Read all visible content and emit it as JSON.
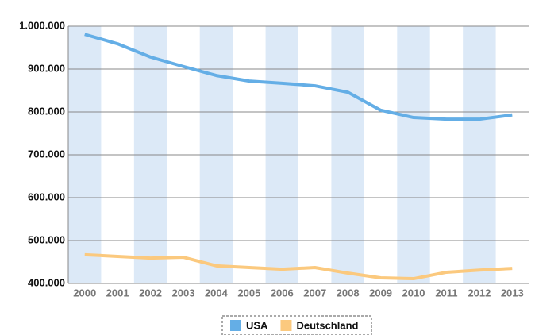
{
  "chart_data": {
    "type": "line",
    "categories": [
      "2000",
      "2001",
      "2002",
      "2003",
      "2004",
      "2005",
      "2006",
      "2007",
      "2008",
      "2009",
      "2010",
      "2011",
      "2012",
      "2013"
    ],
    "series": [
      {
        "name": "USA",
        "color": "#64aee6",
        "values": [
          981000,
          959000,
          928000,
          906000,
          885000,
          872000,
          867000,
          861000,
          846000,
          804000,
          787000,
          783000,
          783000,
          793000
        ]
      },
      {
        "name": "Deutschland",
        "color": "#fbc97e",
        "values": [
          467000,
          463000,
          459000,
          461000,
          441000,
          437000,
          433000,
          437000,
          424000,
          413000,
          411000,
          426000,
          431000,
          435000
        ]
      }
    ],
    "ylim": [
      400000,
      1000000
    ],
    "yticks": [
      {
        "value": 400000,
        "label": "400.000"
      },
      {
        "value": 500000,
        "label": "500.000"
      },
      {
        "value": 600000,
        "label": "600.000"
      },
      {
        "value": 700000,
        "label": "700.000"
      },
      {
        "value": 800000,
        "label": "800.000"
      },
      {
        "value": 900000,
        "label": "900.000"
      },
      {
        "value": 1000000,
        "label": "1.000.000"
      }
    ],
    "grid": true,
    "band_color": "#dce9f7",
    "legend": "bottom"
  }
}
